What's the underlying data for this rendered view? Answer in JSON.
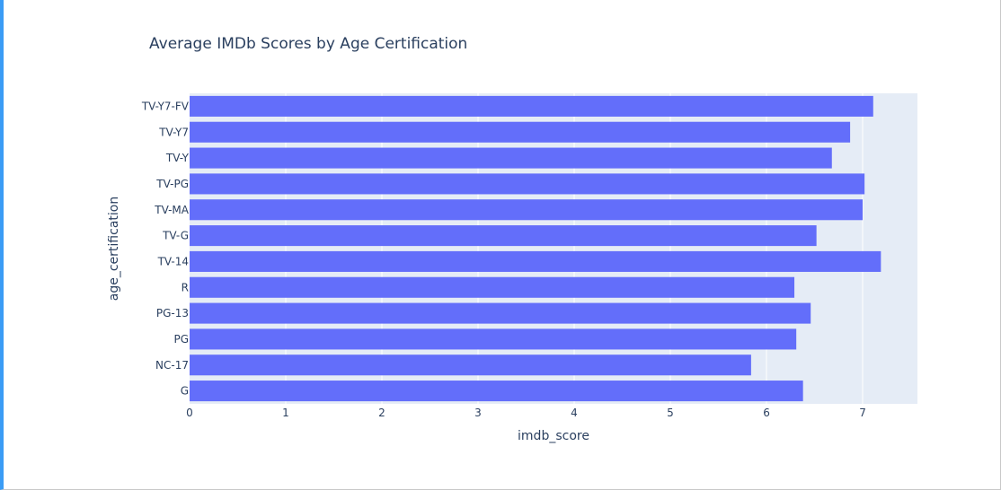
{
  "chart_data": {
    "type": "bar",
    "orientation": "horizontal",
    "title": "Average IMDb Scores by Age Certification",
    "xlabel": "imdb_score",
    "ylabel": "age_certification",
    "categories": [
      "G",
      "NC-17",
      "PG",
      "PG-13",
      "R",
      "TV-14",
      "TV-G",
      "TV-MA",
      "TV-PG",
      "TV-Y",
      "TV-Y7",
      "TV-Y7-FV"
    ],
    "values": [
      6.38,
      5.84,
      6.31,
      6.46,
      6.29,
      7.19,
      6.52,
      7.0,
      7.02,
      6.68,
      6.87,
      7.11
    ],
    "xlim": [
      0,
      7.57
    ],
    "xticks": [
      0,
      1,
      2,
      3,
      4,
      5,
      6,
      7
    ],
    "grid": true,
    "bar_color": "#636efa",
    "plot_bg": "#e5ecf6"
  }
}
